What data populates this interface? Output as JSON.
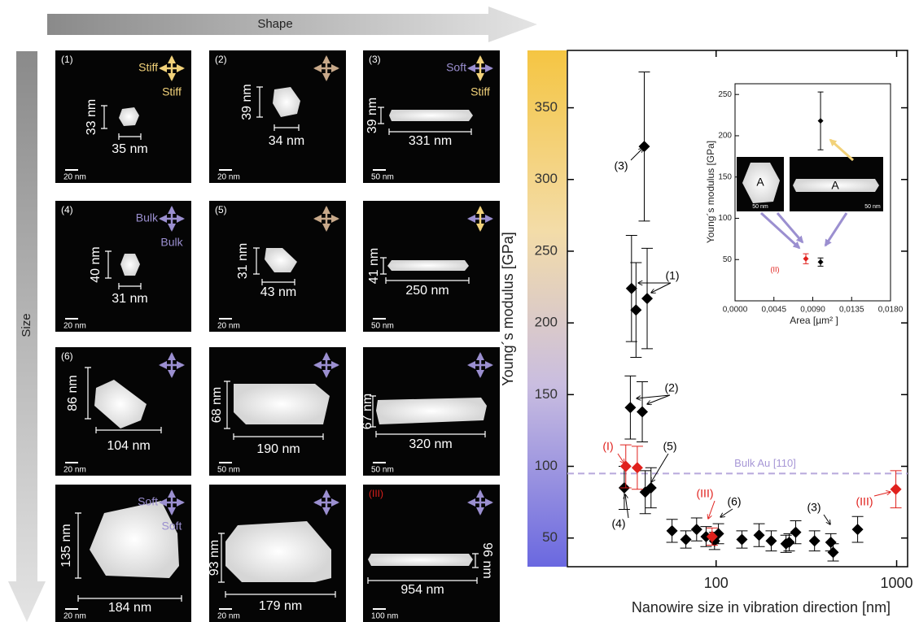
{
  "header": {
    "shape": "Shape",
    "size": "Size"
  },
  "panels": [
    {
      "id": "(1)",
      "height": "33 nm",
      "width": "35 nm",
      "scale": "20 nm",
      "labels": [
        "Stiff",
        "Stiff"
      ]
    },
    {
      "id": "(2)",
      "height": "39 nm",
      "width": "34 nm",
      "scale": "20 nm"
    },
    {
      "id": "(3)",
      "height": "39 nm",
      "width": "331 nm",
      "scale": "50 nm",
      "labels": [
        "Soft",
        "Stiff"
      ]
    },
    {
      "id": "(4)",
      "height": "40 nm",
      "width": "31 nm",
      "scale": "20 nm",
      "labels": [
        "Bulk",
        "Bulk"
      ]
    },
    {
      "id": "(5)",
      "height": "31 nm",
      "width": "43 nm",
      "scale": "20 nm"
    },
    {
      "height": "41 nm",
      "width": "250 nm",
      "scale": "50 nm"
    },
    {
      "id": "(6)",
      "height": "86 nm",
      "width": "104 nm",
      "scale": "20 nm"
    },
    {
      "height": "68 nm",
      "width": "190 nm",
      "scale": "50 nm"
    },
    {
      "height": "67 nm",
      "width": "320 nm",
      "scale": "50 nm"
    },
    {
      "height": "135 nm",
      "width": "184 nm",
      "scale": "20 nm",
      "labels": [
        "Soft",
        "Soft"
      ]
    },
    {
      "height": "93 nm",
      "width": "179 nm",
      "scale": "20 nm"
    },
    {
      "id": "(III)",
      "height": "96 nm",
      "width": "954 nm",
      "scale": "100 nm"
    }
  ],
  "chart_data": [
    {
      "type": "scatter",
      "x_label": "Nanowire size in vibration direction [nm]",
      "y_label": "Young´s modulus [GPa]",
      "xscale": "log",
      "xlim": [
        15,
        1150
      ],
      "ylim": [
        30,
        390
      ],
      "xticks": [
        100,
        1000
      ],
      "yticks": [
        50,
        100,
        150,
        200,
        250,
        300,
        350
      ],
      "series": [
        {
          "color": "#000000",
          "x": [
            40,
            34,
            36,
            41.5,
            33.5,
            39,
            31,
            40.5,
            43.6,
            57,
            68,
            78,
            88,
            98,
            103,
            139,
            173,
            202,
            244,
            254,
            276,
            351,
            432,
            445,
            608
          ],
          "values": [
            323,
            224,
            209,
            217,
            141,
            138,
            85,
            82,
            85,
            55,
            49,
            56,
            51,
            48,
            53,
            49,
            52,
            48,
            46,
            47,
            54,
            48,
            47,
            40,
            56
          ],
          "errors": [
            52,
            37,
            33,
            35,
            22,
            21,
            15,
            15,
            14,
            8,
            6,
            8,
            7,
            6,
            7,
            6,
            8,
            7,
            6,
            6,
            8,
            7,
            6,
            6,
            9
          ]
        },
        {
          "color": "#e0201c",
          "x": [
            31.6,
            36.6,
            95,
            990
          ],
          "values": [
            100,
            99,
            51,
            84
          ],
          "errors": [
            15,
            15,
            6,
            13
          ]
        }
      ],
      "reference": {
        "value": 95,
        "label": "Bulk Au [110]"
      },
      "annotations": [
        "(3)",
        "(1)",
        "(2)",
        "(I)",
        "(5)",
        "(4)",
        "(III)",
        "(6)",
        "(3)",
        "(III)"
      ]
    },
    {
      "type": "scatter",
      "x_label": "Area [µm² ]",
      "y_label": "Young´s modulus [GPa]",
      "xlim": [
        0,
        0.018
      ],
      "ylim": [
        0,
        263
      ],
      "xticks": [
        {
          "value": 0,
          "label": "0,0000"
        },
        {
          "value": 0.0045,
          "label": "0,0045"
        },
        {
          "value": 0.009,
          "label": "0,0090"
        },
        {
          "value": 0.0135,
          "label": "0,0135"
        },
        {
          "value": 0.018,
          "label": "0,0180"
        }
      ],
      "yticks": [
        50,
        100,
        150,
        200,
        250
      ],
      "series": [
        {
          "color": "#000000",
          "x": [
            0.0099,
            0.0099
          ],
          "values": [
            218,
            47
          ],
          "errors": [
            35,
            5
          ]
        },
        {
          "color": "#e0201c",
          "x": [
            0.0082
          ],
          "values": [
            51
          ],
          "errors": [
            6
          ]
        }
      ],
      "annotations": [
        "(II)",
        "A",
        "50 nm",
        "A",
        "50 nm"
      ]
    }
  ]
}
